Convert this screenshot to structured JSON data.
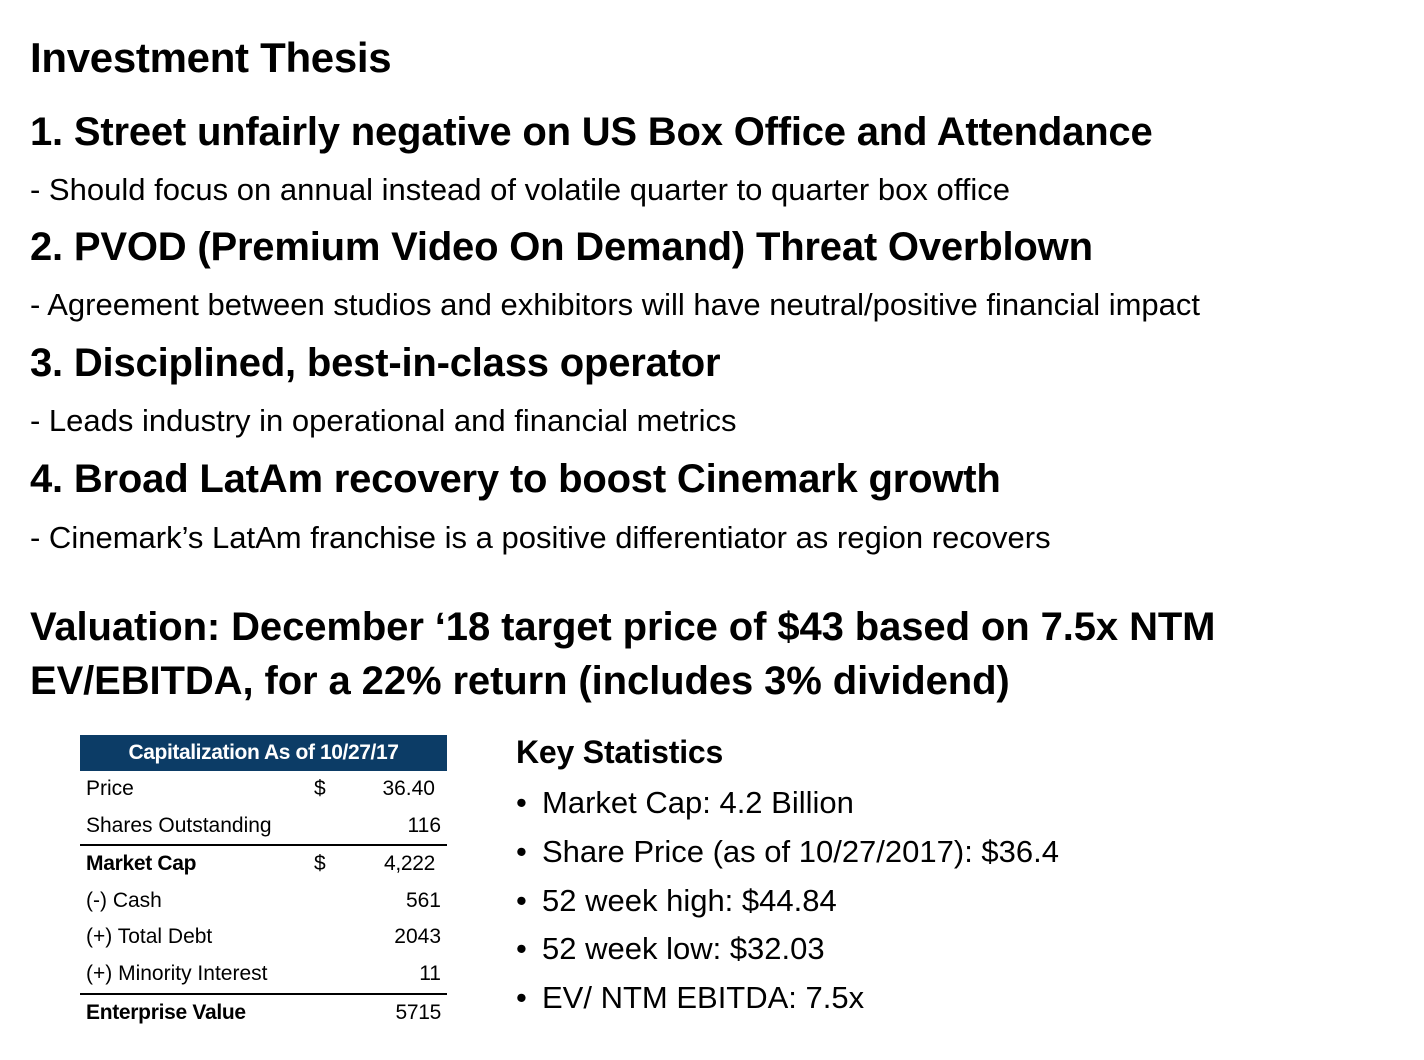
{
  "title": "Investment Thesis",
  "points": [
    {
      "heading": "1. Street unfairly negative on US Box Office and Attendance",
      "detail": "- Should focus on annual instead of volatile quarter to quarter box office"
    },
    {
      "heading": "2. PVOD (Premium Video On Demand) Threat Overblown",
      "detail": "- Agreement between studios and exhibitors will have neutral/positive financial impact"
    },
    {
      "heading": "3. Disciplined, best-in-class operator",
      "detail": "- Leads industry in operational and financial metrics"
    },
    {
      "heading": "4. Broad LatAm recovery to boost Cinemark growth",
      "detail": "-  Cinemark’s LatAm franchise is a positive differentiator as region recovers"
    }
  ],
  "valuation": {
    "line1": "Valuation: December ‘18 target price of $43 based on 7.5x NTM",
    "line2": "EV/EBITDA, for a 22% return (includes 3% dividend)"
  },
  "capitalization": {
    "header": "Capitalization As of 10/27/17",
    "rows": [
      {
        "label": "Price",
        "currency": "$",
        "value": "36.40"
      },
      {
        "label": "Shares Outstanding",
        "currency": "",
        "value": "116"
      },
      {
        "label": "Market Cap",
        "currency": "$",
        "value": "4,222"
      },
      {
        "label": "(-) Cash",
        "currency": "",
        "value": "561"
      },
      {
        "label": "(+) Total Debt",
        "currency": "",
        "value": "2043"
      },
      {
        "label": "(+) Minority Interest",
        "currency": "",
        "value": "11"
      },
      {
        "label": "Enterprise Value",
        "currency": "",
        "value": "5715"
      }
    ]
  },
  "key_statistics": {
    "title": "Key Statistics",
    "bullet": "•",
    "items": [
      "Market Cap: 4.2 Billion",
      "Share Price (as of 10/27/2017): $36.4",
      "52 week high: $44.84",
      "52 week low: $32.03",
      "EV/ NTM EBITDA: 7.5x"
    ]
  },
  "colors": {
    "table_header_bg": "#0c3c66",
    "table_header_text": "#ffffff"
  }
}
